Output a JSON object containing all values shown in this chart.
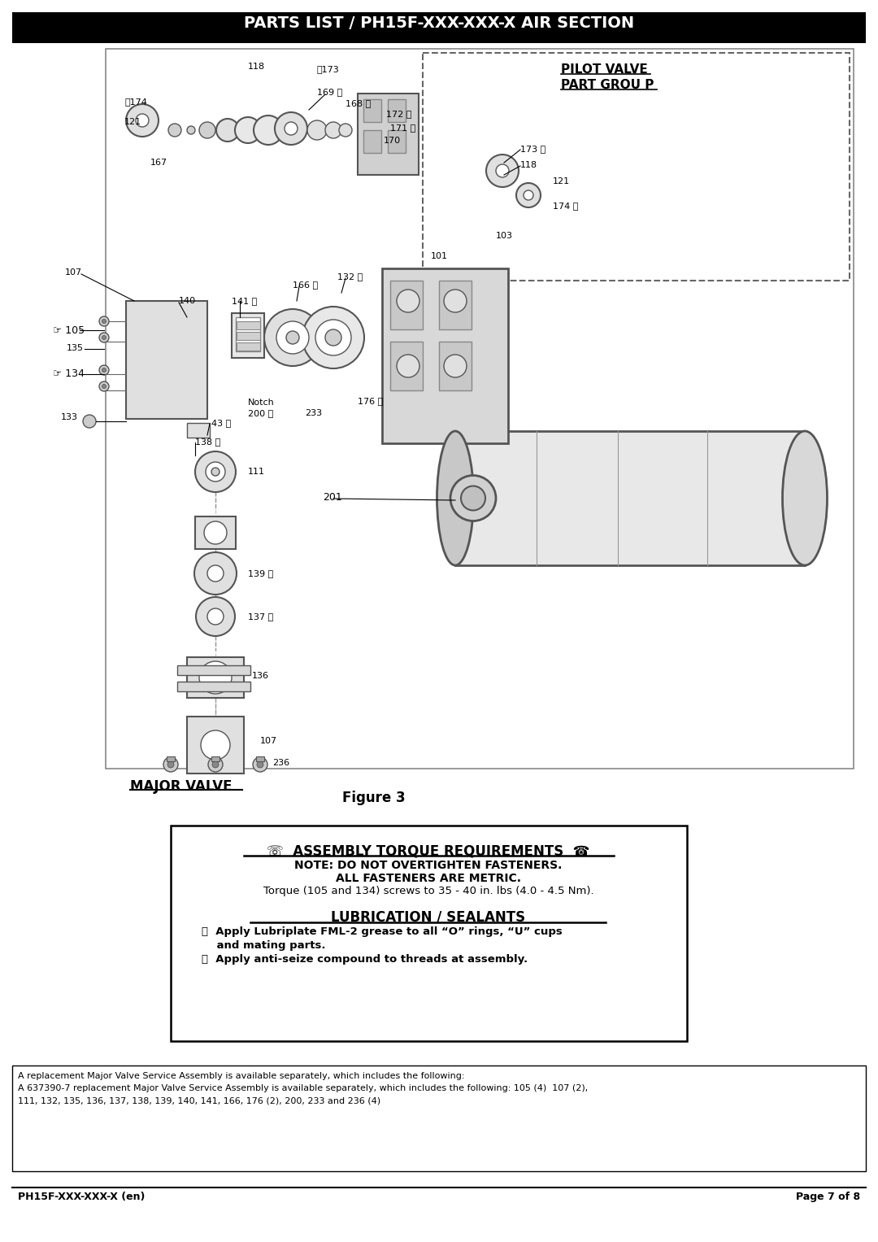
{
  "title": "PARTS LIST / PH15F-XXX-XXX-X AIR SECTION",
  "title_bg": "#000000",
  "title_fg": "#ffffff",
  "figure_label": "Figure 3",
  "major_valve_label": "MAJOR VALVE",
  "assembly_box": {
    "title_left": "☏  ASSEMBLY TORQUE REQUIREMENTS",
    "title_right": " ☎",
    "line1": "NOTE: DO NOT OVERTIGHTEN FASTENERS.",
    "line2": "ALL FASTENERS ARE METRIC.",
    "line3": "Torque (105 and 134) screws to 35 - 40 in. lbs (4.0 - 4.5 Nm).",
    "lubrication_title": "LUBRICATION / SEALANTS",
    "lub_line1": "ⓓ  Apply Lubriplate FML-2 grease to all “O” rings, “U” cups",
    "lub_line1b": "    and mating parts.",
    "lub_line2": "ⓑ  Apply anti-seize compound to threads at assembly."
  },
  "footer_line1": "A replacement Major Valve Service Assembly is available separately, which includes the following:",
  "footer_line2": "A 637390-7 replacement Major Valve Service Assembly is available separately, which includes the following: 105 (4)  107 (2),",
  "footer_line3": "111, 132, 135, 136, 137, 138, 139, 140, 141, 166, 176 (2), 200, 233 and 236 (4)",
  "page_left": "PH15F-XXX-XXX-X (en)",
  "page_right": "Page 7 of 8",
  "bg_color": "#ffffff"
}
